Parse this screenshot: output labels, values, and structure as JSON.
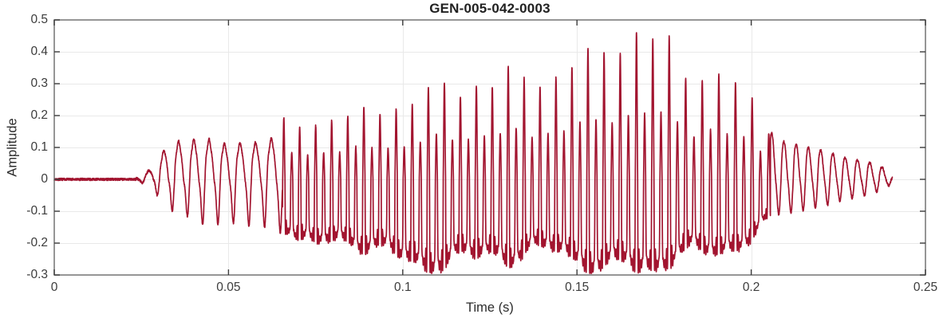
{
  "chart_data": {
    "type": "line",
    "title": "GEN-005-042-0003",
    "xlabel": "Time (s)",
    "ylabel": "Amplitude",
    "xlim": [
      0,
      0.25
    ],
    "ylim": [
      -0.3,
      0.5
    ],
    "x_ticks": [
      0,
      0.05,
      0.1,
      0.15,
      0.2,
      0.25
    ],
    "x_tick_labels": [
      "0",
      "0.05",
      "0.1",
      "0.15",
      "0.2",
      "0.25"
    ],
    "y_ticks": [
      0.5,
      0.4,
      0.3,
      0.2,
      0.1,
      0,
      -0.1,
      -0.2,
      -0.3
    ],
    "y_tick_labels": [
      "0.5",
      "0.4",
      "0.3",
      "0.2",
      "0.1",
      "0",
      "-0.1",
      "-0.2",
      "-0.3"
    ],
    "grid": true,
    "legend": null,
    "colors": {
      "line": "#A2142F",
      "grid": "#E9E9E9",
      "box": "#7E7E7E",
      "tick": "#3E3E3E",
      "background": "#FFFFFF"
    },
    "signal": {
      "description": "speech-like waveform: silence, 220Hz onset oscillation, loud voiced segment peaking 0.455 at t=0.168s, decaying ~290Hz tail ending t=0.2405s",
      "duration_s": 0.2405,
      "sample_rate": 24000,
      "noise_amp": 0.0035,
      "envelope_t_upper_lower": [
        [
          0.0,
          0.004,
          -0.004
        ],
        [
          0.02,
          0.004,
          -0.004
        ],
        [
          0.0235,
          0.006,
          -0.006
        ],
        [
          0.026,
          0.018,
          -0.014
        ],
        [
          0.028,
          0.035,
          -0.028
        ],
        [
          0.03,
          0.065,
          -0.055
        ],
        [
          0.032,
          0.1,
          -0.085
        ],
        [
          0.035,
          0.125,
          -0.11
        ],
        [
          0.04,
          0.13,
          -0.13
        ],
        [
          0.045,
          0.12,
          -0.14
        ],
        [
          0.05,
          0.115,
          -0.14
        ],
        [
          0.055,
          0.12,
          -0.15
        ],
        [
          0.06,
          0.125,
          -0.155
        ],
        [
          0.064,
          0.13,
          -0.165
        ],
        [
          0.066,
          0.165,
          -0.14
        ],
        [
          0.07,
          0.155,
          -0.18
        ],
        [
          0.075,
          0.17,
          -0.2
        ],
        [
          0.08,
          0.2,
          -0.21
        ],
        [
          0.085,
          0.2,
          -0.2
        ],
        [
          0.09,
          0.21,
          -0.22
        ],
        [
          0.095,
          0.24,
          -0.24
        ],
        [
          0.1,
          0.235,
          -0.27
        ],
        [
          0.105,
          0.26,
          -0.28
        ],
        [
          0.11,
          0.26,
          -0.25
        ],
        [
          0.115,
          0.27,
          -0.24
        ],
        [
          0.12,
          0.29,
          -0.25
        ],
        [
          0.125,
          0.3,
          -0.24
        ],
        [
          0.13,
          0.33,
          -0.26
        ],
        [
          0.135,
          0.32,
          -0.24
        ],
        [
          0.14,
          0.35,
          -0.25
        ],
        [
          0.145,
          0.32,
          -0.23
        ],
        [
          0.15,
          0.36,
          -0.25
        ],
        [
          0.155,
          0.35,
          -0.26
        ],
        [
          0.16,
          0.42,
          -0.28
        ],
        [
          0.164,
          0.43,
          -0.27
        ],
        [
          0.168,
          0.455,
          -0.285
        ],
        [
          0.172,
          0.44,
          -0.29
        ],
        [
          0.176,
          0.425,
          -0.265
        ],
        [
          0.18,
          0.39,
          -0.26
        ],
        [
          0.185,
          0.34,
          -0.25
        ],
        [
          0.19,
          0.32,
          -0.23
        ],
        [
          0.195,
          0.28,
          -0.21
        ],
        [
          0.2,
          0.24,
          -0.18
        ],
        [
          0.204,
          0.175,
          -0.14
        ],
        [
          0.208,
          0.12,
          -0.11
        ],
        [
          0.212,
          0.11,
          -0.1
        ],
        [
          0.216,
          0.1,
          -0.095
        ],
        [
          0.22,
          0.09,
          -0.085
        ],
        [
          0.225,
          0.08,
          -0.075
        ],
        [
          0.23,
          0.062,
          -0.058
        ],
        [
          0.235,
          0.048,
          -0.042
        ],
        [
          0.239,
          0.03,
          -0.025
        ],
        [
          0.2405,
          0.008,
          -0.008
        ]
      ],
      "pitch_track_t_hz": [
        [
          0.0,
          226
        ],
        [
          0.03,
          228
        ],
        [
          0.065,
          222
        ],
        [
          0.1,
          218
        ],
        [
          0.15,
          215
        ],
        [
          0.205,
          212
        ],
        [
          0.206,
          290
        ],
        [
          0.2405,
          278
        ]
      ],
      "segments": [
        {
          "name": "silence",
          "t_start": 0.0,
          "t_end": 0.0235,
          "harmonics": [
            0
          ],
          "phases": [
            0
          ],
          "mod_weight": 0.0
        },
        {
          "name": "onset",
          "t_start": 0.0235,
          "t_end": 0.0655,
          "harmonics": [
            1,
            0.32,
            0.16,
            0.07
          ],
          "phases": [
            -1.5,
            -0.4,
            0.9,
            1.9
          ],
          "mod_weight": 0.5
        },
        {
          "name": "voiced",
          "t_start": 0.0655,
          "t_end": 0.2055,
          "harmonics": [
            0.3,
            1.0,
            0.25,
            0.7,
            0.18,
            0.4,
            0.1,
            0.15
          ],
          "phases": [
            0,
            0,
            0,
            0,
            0,
            0,
            0,
            0
          ],
          "mod_weight": 1.0
        },
        {
          "name": "tail",
          "t_start": 0.2055,
          "t_end": 0.2405,
          "harmonics": [
            1,
            0.22,
            0.07
          ],
          "phases": [
            -1.57,
            -0.8,
            0.4
          ],
          "mod_weight": 0.35
        }
      ],
      "amp_modulation": [
        {
          "freq_hz": 47,
          "depth": 0.09,
          "phase": 0.7
        },
        {
          "freq_hz": 90,
          "depth": 0.06,
          "phase": 2.1
        },
        {
          "freq_hz": 23,
          "depth": 0.05,
          "phase": 4.0
        }
      ],
      "pitch_wobble": {
        "depth": 0.015,
        "freq_hz": 9
      },
      "y_clip": [
        -0.295,
        0.46
      ]
    }
  }
}
